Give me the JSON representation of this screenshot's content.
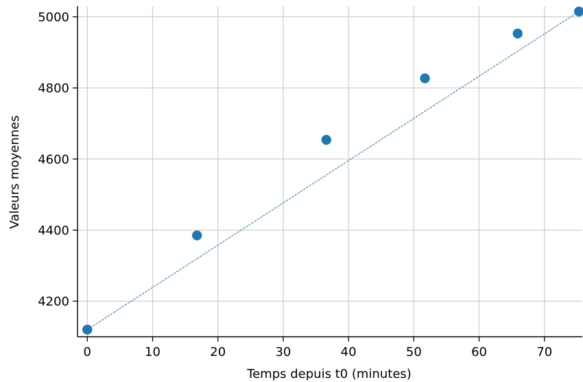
{
  "chart_data": {
    "type": "scatter",
    "title": "",
    "xlabel": "Temps depuis t0 (minutes)",
    "ylabel": "Valeurs moyennes",
    "xlim": [
      -1.5,
      75.8
    ],
    "ylim": [
      4100,
      5030
    ],
    "xticks": [
      0,
      10,
      20,
      30,
      40,
      50,
      60,
      70
    ],
    "yticks": [
      4200,
      4400,
      4600,
      4800,
      5000
    ],
    "grid": true,
    "legend": "none",
    "series": [
      {
        "type": "scatter",
        "color": "#1f77b4",
        "x": [
          0,
          16.8,
          36.6,
          51.7,
          65.9,
          75.3
        ],
        "y": [
          4120,
          4385,
          4654,
          4827,
          4953,
          5015
        ]
      },
      {
        "type": "line",
        "style": "dashed",
        "color": "#1f77b4",
        "x": [
          0,
          75.3
        ],
        "y": [
          4120,
          5015
        ]
      }
    ]
  }
}
